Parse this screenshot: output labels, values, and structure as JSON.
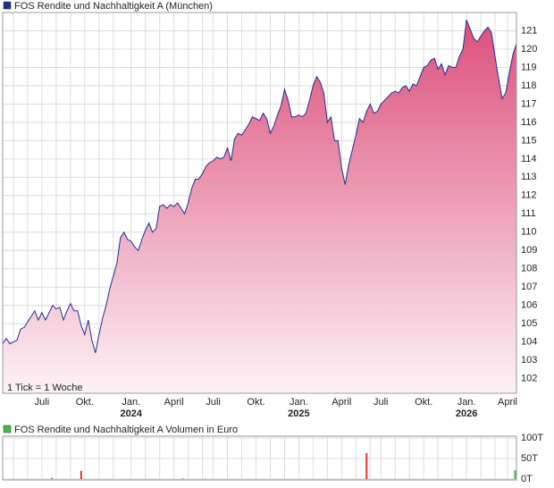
{
  "chart_data": [
    {
      "type": "area",
      "legend_title": "FOS Rendite und Nachhaltigkeit A (München)",
      "annotation": "1 Tick = 1 Woche",
      "series": [
        {
          "name": "FOS Rendite und Nachhaltigkeit A (München)",
          "color": "#1f2f8f",
          "values": [
            103.9,
            104.2,
            103.9,
            104.0,
            104.1,
            104.7,
            104.8,
            105.1,
            105.4,
            105.7,
            105.2,
            105.6,
            105.2,
            105.6,
            106.0,
            105.8,
            105.9,
            105.2,
            105.7,
            106.1,
            105.7,
            105.7,
            104.9,
            104.4,
            105.2,
            104.1,
            103.4,
            104.4,
            105.3,
            106.0,
            106.9,
            107.6,
            108.3,
            109.7,
            110.0,
            109.6,
            109.5,
            109.2,
            109.0,
            109.6,
            110.1,
            110.5,
            110.0,
            110.2,
            111.4,
            111.5,
            111.3,
            111.5,
            111.4,
            111.6,
            111.3,
            111.0,
            111.6,
            112.4,
            112.9,
            112.9,
            113.2,
            113.6,
            113.8,
            113.9,
            114.1,
            114.0,
            114.1,
            114.6,
            113.9,
            115.1,
            115.4,
            115.3,
            115.6,
            115.9,
            116.3,
            116.2,
            116.1,
            116.5,
            116.2,
            115.4,
            115.8,
            116.4,
            116.9,
            117.8,
            117.2,
            116.3,
            116.3,
            116.4,
            116.3,
            116.5,
            117.2,
            118.0,
            118.5,
            118.2,
            117.6,
            116.0,
            116.3,
            115.0,
            115.0,
            113.5,
            112.6,
            113.7,
            114.5,
            115.3,
            116.2,
            116.0,
            116.6,
            117.0,
            116.5,
            116.6,
            117.0,
            117.2,
            117.4,
            117.6,
            117.7,
            117.6,
            117.9,
            118.0,
            117.7,
            118.1,
            118.0,
            118.5,
            119.0,
            119.1,
            119.4,
            119.5,
            118.9,
            119.2,
            118.6,
            119.1,
            119.0,
            119.0,
            119.6,
            120.0,
            121.6,
            121.1,
            120.6,
            120.4,
            120.7,
            121.0,
            121.2,
            120.9,
            119.6,
            118.4,
            117.3,
            117.6,
            118.7,
            119.7,
            120.3
          ]
        }
      ],
      "xlim": [
        0,
        144
      ],
      "xticks": [
        {
          "value": 3,
          "label": null
        },
        {
          "value": 7,
          "label": null
        },
        {
          "value": 11,
          "label": "Juli"
        },
        {
          "value": 15,
          "label": null
        },
        {
          "value": 19,
          "label": null
        },
        {
          "value": 23,
          "label": "Okt."
        },
        {
          "value": 27,
          "label": null
        },
        {
          "value": 31,
          "label": null
        },
        {
          "value": 36,
          "label": "Jan."
        },
        {
          "value": 40,
          "label": null
        },
        {
          "value": 44,
          "label": null
        },
        {
          "value": 48,
          "label": "April"
        },
        {
          "value": 52,
          "label": null
        },
        {
          "value": 56,
          "label": null
        },
        {
          "value": 59,
          "label": "Juli"
        },
        {
          "value": 63,
          "label": null
        },
        {
          "value": 67,
          "label": null
        },
        {
          "value": 71,
          "label": "Okt."
        },
        {
          "value": 75,
          "label": null
        },
        {
          "value": 79,
          "label": null
        },
        {
          "value": 83,
          "label": "Jan."
        },
        {
          "value": 87,
          "label": null
        },
        {
          "value": 91,
          "label": null
        },
        {
          "value": 95,
          "label": "April"
        },
        {
          "value": 99,
          "label": null
        },
        {
          "value": 103,
          "label": null
        },
        {
          "value": 106,
          "label": "Juli"
        },
        {
          "value": 110,
          "label": null
        },
        {
          "value": 114,
          "label": null
        },
        {
          "value": 118,
          "label": "Okt."
        },
        {
          "value": 122,
          "label": null
        },
        {
          "value": 126,
          "label": null
        },
        {
          "value": 130,
          "label": "Jan."
        },
        {
          "value": 134,
          "label": null
        },
        {
          "value": 138,
          "label": null
        },
        {
          "value": 141.5,
          "label": "April"
        }
      ],
      "x_year_labels": [
        {
          "value": 36,
          "label": "2024"
        },
        {
          "value": 83,
          "label": "2025"
        },
        {
          "value": 130,
          "label": "2026"
        }
      ],
      "ylim": [
        101.2,
        122.0
      ],
      "yticks": [
        102,
        103,
        104,
        105,
        106,
        107,
        108,
        109,
        110,
        111,
        112,
        113,
        114,
        115,
        116,
        117,
        118,
        119,
        120,
        121
      ],
      "grid": true
    },
    {
      "type": "bar",
      "legend_title": "FOS Rendite und Nachhaltigkeit A Volumen in Euro",
      "legend_color": "#44bb44",
      "x": [
        13.75,
        22,
        50.4,
        102,
        143.6
      ],
      "values": [
        3000,
        20000,
        1500,
        63000,
        21000
      ],
      "colors": [
        "#44bb44",
        "#dd3333",
        "#44bb44",
        "#dd3333",
        "#44bb44"
      ],
      "xlim": [
        0,
        144
      ],
      "ylim": [
        0,
        100000
      ],
      "yticks": [
        {
          "value": 0,
          "label": "0T"
        },
        {
          "value": 50000,
          "label": "50T"
        },
        {
          "value": 100000,
          "label": "100T"
        }
      ],
      "grid": true
    }
  ]
}
